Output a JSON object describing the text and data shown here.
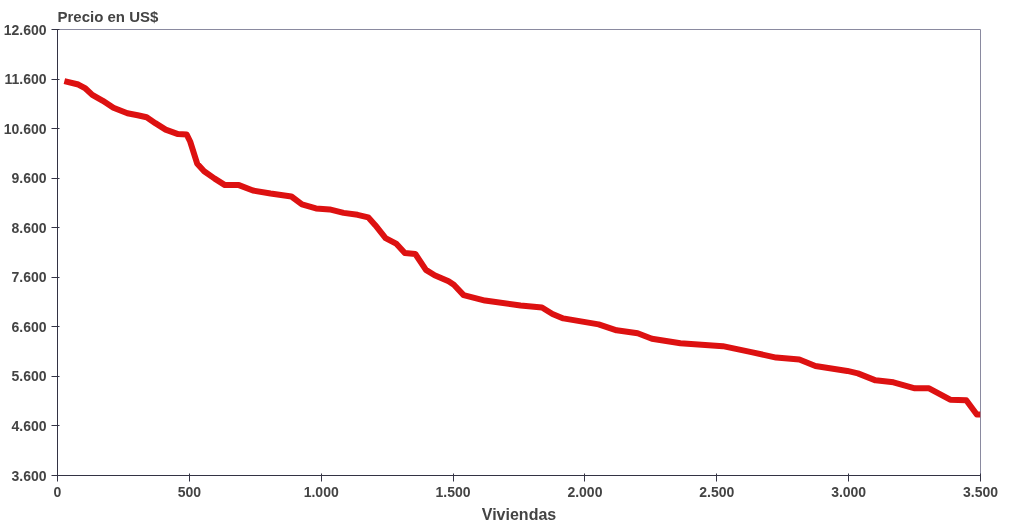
{
  "chart_data": {
    "type": "line",
    "ylabel": "Precio en US$",
    "xlabel": "Viviendas",
    "xlim": [
      0,
      3500
    ],
    "ylim": [
      3600,
      12600
    ],
    "xticks": [
      0,
      {
        "value": 500,
        "label": "500"
      },
      {
        "value": 1000,
        "label": "1.000"
      },
      {
        "value": 1500,
        "label": "1.500"
      },
      {
        "value": 2000,
        "label": "2.000"
      },
      {
        "value": 2500,
        "label": "2.500"
      },
      {
        "value": 3000,
        "label": "3.000"
      },
      {
        "value": 3500,
        "label": "3.500"
      }
    ],
    "yticks": [
      {
        "value": 3600,
        "label": "3.600"
      },
      {
        "value": 4600,
        "label": "4.600"
      },
      {
        "value": 5600,
        "label": "5.600"
      },
      {
        "value": 6600,
        "label": "6.600"
      },
      {
        "value": 7600,
        "label": "7.600"
      },
      {
        "value": 8600,
        "label": "8.600"
      },
      {
        "value": 9600,
        "label": "9.600"
      },
      {
        "value": 10600,
        "label": "10.600"
      },
      {
        "value": 11600,
        "label": "11.600"
      },
      {
        "value": 12600,
        "label": "12.600"
      }
    ],
    "grid": false,
    "marker": "none",
    "line_style": "solid",
    "x": [
      26,
      79,
      106,
      132,
      172,
      212,
      265,
      304,
      338,
      371,
      410,
      457,
      490,
      503,
      530,
      556,
      596,
      635,
      688,
      741,
      808,
      887,
      927,
      980,
      1032,
      1085,
      1138,
      1178,
      1205,
      1244,
      1284,
      1317,
      1357,
      1397,
      1430,
      1483,
      1503,
      1540,
      1621,
      1756,
      1837,
      1877,
      1918,
      2052,
      2120,
      2200,
      2254,
      2362,
      2523,
      2631,
      2725,
      2813,
      2874,
      2995,
      3035,
      3102,
      3170,
      3251,
      3305,
      3385,
      3446,
      3486,
      3500
    ],
    "series": [
      {
        "color": "#dd1111",
        "values": [
          11560,
          11490,
          11410,
          11280,
          11160,
          11020,
          10910,
          10870,
          10830,
          10710,
          10580,
          10490,
          10480,
          10340,
          9890,
          9740,
          9590,
          9460,
          9460,
          9350,
          9290,
          9230,
          9070,
          8990,
          8970,
          8900,
          8860,
          8810,
          8650,
          8390,
          8280,
          8090,
          8070,
          7750,
          7640,
          7520,
          7450,
          7240,
          7130,
          7030,
          6990,
          6860,
          6770,
          6650,
          6530,
          6470,
          6360,
          6270,
          6210,
          6090,
          5980,
          5940,
          5810,
          5710,
          5660,
          5520,
          5480,
          5360,
          5360,
          5130,
          5120,
          4830,
          4830
        ]
      }
    ]
  }
}
